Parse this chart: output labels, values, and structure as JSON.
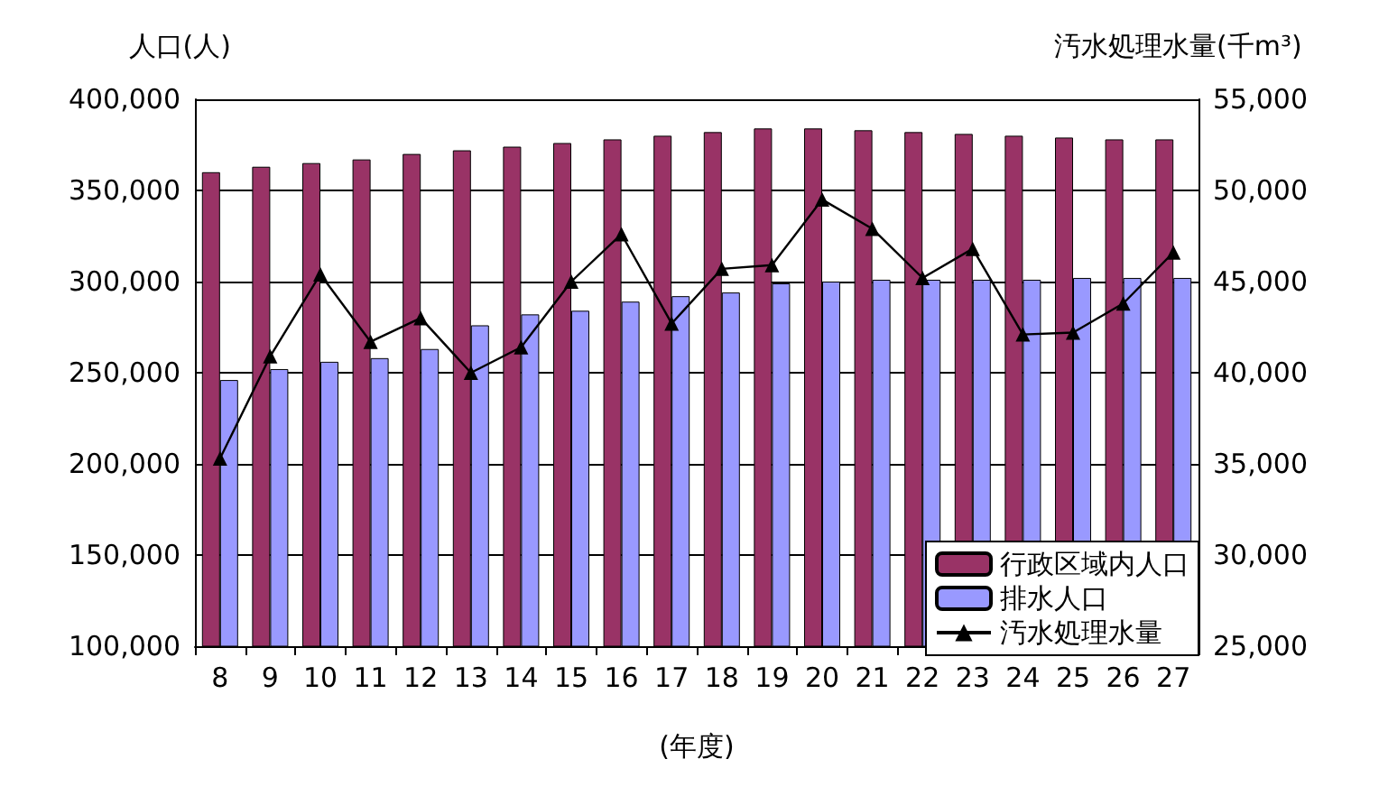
{
  "chart_data": {
    "type": "bar",
    "ylabel": "人口(人)",
    "y2label": "汚水処理水量(千m³)",
    "xlabel": "(年度)",
    "categories": [
      "8",
      "9",
      "10",
      "11",
      "12",
      "13",
      "14",
      "15",
      "16",
      "17",
      "18",
      "19",
      "20",
      "21",
      "22",
      "23",
      "24",
      "25",
      "26",
      "27"
    ],
    "series": [
      {
        "name": "行政区域内人口",
        "color": "#993366",
        "values": [
          360000,
          363000,
          365000,
          367000,
          370000,
          372000,
          374000,
          376000,
          378000,
          380000,
          382000,
          384000,
          384000,
          383000,
          382000,
          381000,
          380000,
          379000,
          378000,
          378000
        ]
      },
      {
        "name": "排水人口",
        "color": "#9999ff",
        "values": [
          246000,
          252000,
          256000,
          258000,
          263000,
          276000,
          282000,
          284000,
          289000,
          292000,
          294000,
          299000,
          300000,
          301000,
          301000,
          301000,
          301000,
          302000,
          302000,
          302000
        ]
      },
      {
        "name": "汚水処理水量",
        "type": "line",
        "axis": "y2",
        "color": "#000000",
        "marker": "triangle",
        "values": [
          35300,
          40900,
          45400,
          41700,
          43000,
          40000,
          41400,
          45000,
          47600,
          42700,
          45700,
          45900,
          49500,
          47900,
          45200,
          46800,
          42100,
          42200,
          43800,
          46600
        ]
      }
    ],
    "ylim": [
      100000,
      400000
    ],
    "yticks": [
      {
        "value": 100000,
        "label": "100,000"
      },
      {
        "value": 150000,
        "label": "150,000"
      },
      {
        "value": 200000,
        "label": "200,000"
      },
      {
        "value": 250000,
        "label": "250,000"
      },
      {
        "value": 300000,
        "label": "300,000"
      },
      {
        "value": 350000,
        "label": "350,000"
      },
      {
        "value": 400000,
        "label": "400,000"
      }
    ],
    "y2lim": [
      25000,
      55000
    ],
    "y2ticks": [
      {
        "value": 25000,
        "label": "25,000"
      },
      {
        "value": 30000,
        "label": "30,000"
      },
      {
        "value": 35000,
        "label": "35,000"
      },
      {
        "value": 40000,
        "label": "40,000"
      },
      {
        "value": 45000,
        "label": "45,000"
      },
      {
        "value": 50000,
        "label": "50,000"
      },
      {
        "value": 55000,
        "label": "55,000"
      }
    ],
    "grid": "y",
    "legend": "bottom right"
  }
}
